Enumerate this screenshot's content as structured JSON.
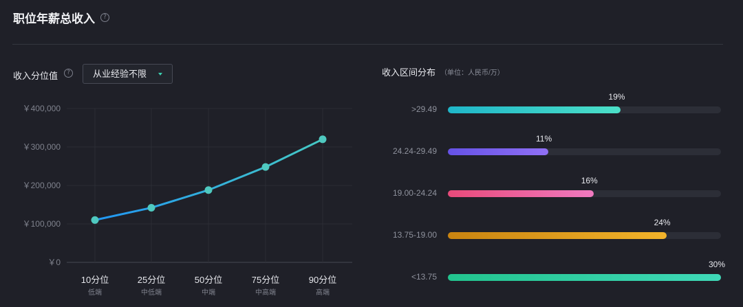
{
  "header": {
    "title": "职位年薪总收入"
  },
  "left_panel": {
    "label": "收入分位值",
    "dropdown_value": "从业经验不限"
  },
  "right_panel": {
    "label": "收入区间分布",
    "unit": "（单位：人民币/万）"
  },
  "colors": {
    "line_start": "#2196f3",
    "line_end": "#45c9c4",
    "marker": "#4fc9c0",
    "bar_gradients": [
      [
        "#1fb6c9",
        "#4ce0c8"
      ],
      [
        "#6552e6",
        "#9070f5"
      ],
      [
        "#e84a7a",
        "#f07ac0"
      ],
      [
        "#c98410",
        "#f2b32a"
      ],
      [
        "#22c48e",
        "#3fd9b8"
      ]
    ]
  },
  "chart_data": [
    {
      "type": "line",
      "categories": [
        "10分位",
        "25分位",
        "50分位",
        "75分位",
        "90分位"
      ],
      "sublabels": [
        "低端",
        "中低端",
        "中端",
        "中高端",
        "高端"
      ],
      "values": [
        110000,
        142000,
        188000,
        248000,
        320000
      ],
      "ylim": [
        0,
        400000
      ],
      "yticks": [
        0,
        100000,
        200000,
        300000,
        400000
      ],
      "ytick_labels": [
        "￥0",
        "￥100,000",
        "￥200,000",
        "￥300,000",
        "￥400,000"
      ],
      "grid": true
    },
    {
      "type": "bar",
      "orientation": "horizontal",
      "categories": [
        ">29.49",
        "24.24-29.49",
        "19.00-24.24",
        "13.75-19.00",
        "<13.75"
      ],
      "values": [
        19,
        11,
        16,
        24,
        30
      ],
      "value_labels": [
        "19%",
        "11%",
        "16%",
        "24%",
        "30%"
      ],
      "xlim": [
        0,
        30
      ]
    }
  ]
}
